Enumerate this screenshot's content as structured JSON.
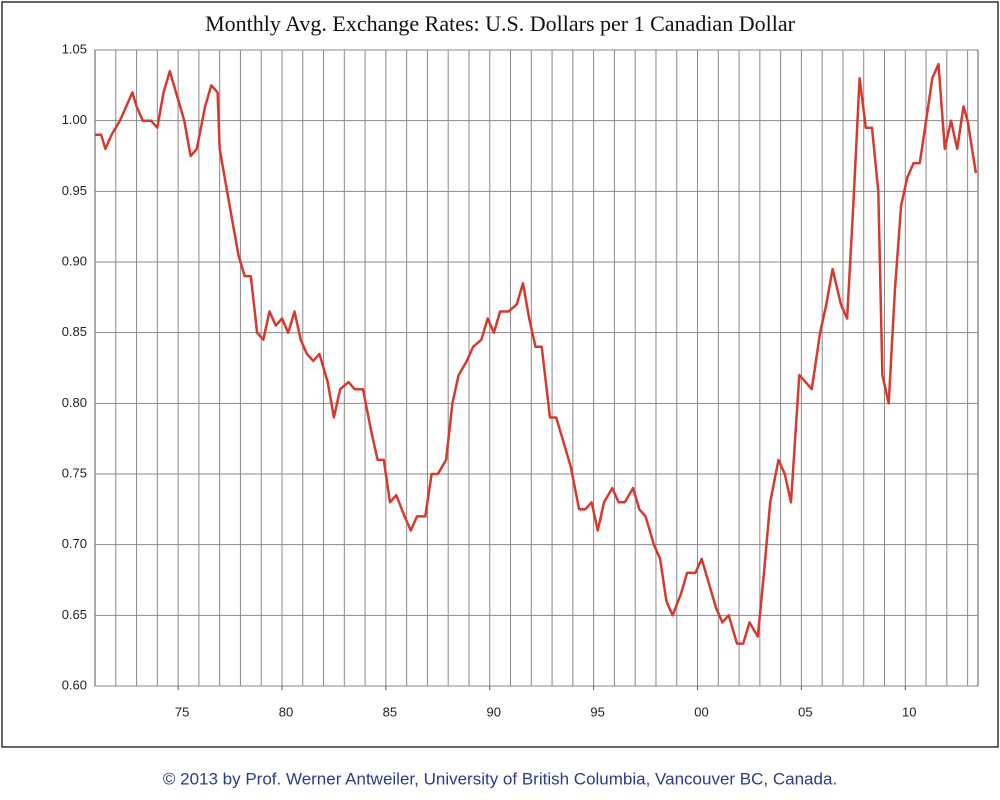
{
  "chart_data": {
    "type": "line",
    "title": "Monthly Avg. Exchange Rates: U.S. Dollars per 1 Canadian Dollar",
    "footer": "© 2013 by Prof. Werner Antweiler, University of British Columbia, Vancouver BC, Canada.",
    "color": "#d63a2f",
    "grid": true,
    "xlim": [
      1971,
      2013.5
    ],
    "ylim": [
      0.6,
      1.05
    ],
    "xticks": [
      {
        "value": 1975,
        "label": "75"
      },
      {
        "value": 1980,
        "label": "80"
      },
      {
        "value": 1985,
        "label": "85"
      },
      {
        "value": 1990,
        "label": "90"
      },
      {
        "value": 1995,
        "label": "95"
      },
      {
        "value": 2000,
        "label": "00"
      },
      {
        "value": 2005,
        "label": "05"
      },
      {
        "value": 2010,
        "label": "10"
      }
    ],
    "xgrid": [
      1972,
      1973,
      1974,
      1975,
      1976,
      1977,
      1978,
      1979,
      1980,
      1981,
      1982,
      1983,
      1984,
      1985,
      1986,
      1987,
      1988,
      1989,
      1990,
      1991,
      1992,
      1993,
      1994,
      1995,
      1996,
      1997,
      1998,
      1999,
      2000,
      2001,
      2002,
      2003,
      2004,
      2005,
      2006,
      2007,
      2008,
      2009,
      2010,
      2011,
      2012,
      2013
    ],
    "yticks": [
      {
        "value": 0.6,
        "label": "0.60"
      },
      {
        "value": 0.65,
        "label": "0.65"
      },
      {
        "value": 0.7,
        "label": "0.70"
      },
      {
        "value": 0.75,
        "label": "0.75"
      },
      {
        "value": 0.8,
        "label": "0.80"
      },
      {
        "value": 0.85,
        "label": "0.85"
      },
      {
        "value": 0.9,
        "label": "0.90"
      },
      {
        "value": 0.95,
        "label": "0.95"
      },
      {
        "value": 1.0,
        "label": "1.00"
      },
      {
        "value": 1.05,
        "label": "1.05"
      }
    ],
    "x": [
      1971.0,
      1971.3,
      1971.5,
      1971.8,
      1972.2,
      1972.5,
      1972.8,
      1973.0,
      1973.3,
      1973.7,
      1974.0,
      1974.3,
      1974.6,
      1974.9,
      1975.3,
      1975.6,
      1975.9,
      1976.3,
      1976.6,
      1976.9,
      1977.0,
      1977.3,
      1977.6,
      1977.9,
      1978.2,
      1978.5,
      1978.8,
      1979.1,
      1979.4,
      1979.7,
      1980.0,
      1980.3,
      1980.6,
      1980.9,
      1981.2,
      1981.5,
      1981.8,
      1982.2,
      1982.5,
      1982.8,
      1983.2,
      1983.5,
      1983.9,
      1984.3,
      1984.6,
      1984.9,
      1985.2,
      1985.5,
      1985.9,
      1986.2,
      1986.5,
      1986.9,
      1987.2,
      1987.5,
      1987.9,
      1988.2,
      1988.5,
      1988.9,
      1989.2,
      1989.6,
      1989.9,
      1990.2,
      1990.5,
      1990.9,
      1991.3,
      1991.6,
      1991.9,
      1992.2,
      1992.5,
      1992.9,
      1993.2,
      1993.5,
      1993.9,
      1994.3,
      1994.6,
      1994.9,
      1995.2,
      1995.5,
      1995.9,
      1996.2,
      1996.5,
      1996.9,
      1997.2,
      1997.5,
      1997.9,
      1998.2,
      1998.5,
      1998.8,
      1999.2,
      1999.5,
      1999.9,
      2000.2,
      2000.5,
      2000.9,
      2001.2,
      2001.5,
      2001.9,
      2002.2,
      2002.5,
      2002.9,
      2003.2,
      2003.5,
      2003.9,
      2004.2,
      2004.5,
      2004.9,
      2005.2,
      2005.5,
      2005.9,
      2006.2,
      2006.5,
      2006.9,
      2007.2,
      2007.5,
      2007.8,
      2008.1,
      2008.4,
      2008.7,
      2008.9,
      2009.2,
      2009.5,
      2009.8,
      2010.1,
      2010.4,
      2010.7,
      2011.0,
      2011.3,
      2011.6,
      2011.9,
      2012.2,
      2012.5,
      2012.8,
      2013.0,
      2013.4
    ],
    "values": [
      0.99,
      0.99,
      0.98,
      0.99,
      1.0,
      1.01,
      1.02,
      1.01,
      1.0,
      1.0,
      0.995,
      1.02,
      1.035,
      1.02,
      1.0,
      0.975,
      0.98,
      1.01,
      1.025,
      1.02,
      0.98,
      0.955,
      0.93,
      0.905,
      0.89,
      0.89,
      0.85,
      0.845,
      0.865,
      0.855,
      0.86,
      0.85,
      0.865,
      0.845,
      0.835,
      0.83,
      0.835,
      0.815,
      0.79,
      0.81,
      0.815,
      0.81,
      0.81,
      0.78,
      0.76,
      0.76,
      0.73,
      0.735,
      0.72,
      0.71,
      0.72,
      0.72,
      0.75,
      0.75,
      0.76,
      0.8,
      0.82,
      0.83,
      0.84,
      0.845,
      0.86,
      0.85,
      0.865,
      0.865,
      0.87,
      0.885,
      0.86,
      0.84,
      0.84,
      0.79,
      0.79,
      0.775,
      0.755,
      0.725,
      0.725,
      0.73,
      0.71,
      0.73,
      0.74,
      0.73,
      0.73,
      0.74,
      0.725,
      0.72,
      0.7,
      0.69,
      0.66,
      0.65,
      0.665,
      0.68,
      0.68,
      0.69,
      0.675,
      0.655,
      0.645,
      0.65,
      0.63,
      0.63,
      0.645,
      0.635,
      0.68,
      0.73,
      0.76,
      0.75,
      0.73,
      0.82,
      0.815,
      0.81,
      0.85,
      0.87,
      0.895,
      0.87,
      0.86,
      0.94,
      1.03,
      0.995,
      0.995,
      0.95,
      0.82,
      0.8,
      0.88,
      0.94,
      0.96,
      0.97,
      0.97,
      1.0,
      1.03,
      1.04,
      0.98,
      1.0,
      0.98,
      1.01,
      1.0,
      0.963
    ]
  }
}
